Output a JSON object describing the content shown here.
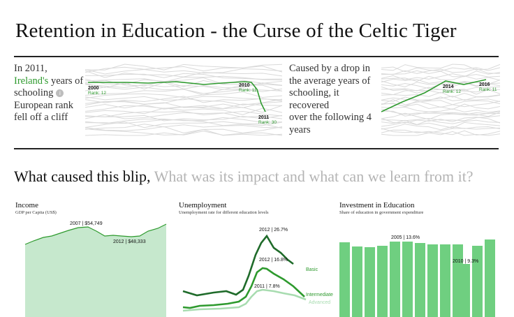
{
  "title": "Retention in Education - the Curse of the Celtic Tiger",
  "intro_left": {
    "line1": "In 2011,",
    "highlight": "Ireland's",
    "line2_rest": " years of",
    "line3": "schooling",
    "line4": "European rank",
    "line5": "fell off a cliff",
    "info_glyph": "i"
  },
  "intro_right": {
    "line1": "Caused by a drop in",
    "line2": "the average years of",
    "line3": "schooling, it recovered",
    "line4": "over the following 4",
    "line5": "years"
  },
  "rank_chart_left": {
    "points": [
      {
        "year": "2000",
        "label": "Rank: 12"
      },
      {
        "year": "2010",
        "label": "Rank: 11"
      },
      {
        "year": "2011",
        "label": "Rank: 30"
      }
    ]
  },
  "rank_chart_right": {
    "points": [
      {
        "year": "2014",
        "label": "Rank: 12"
      },
      {
        "year": "2016",
        "label": "Rank: 11"
      }
    ]
  },
  "section": {
    "question_active": "What caused this blip,",
    "question_muted": "What was its impact and what can we learn from it?"
  },
  "colors": {
    "accent": "#2e9a2e",
    "dark_green": "#1f6b2a",
    "light_green": "#a8dcb0",
    "area_fill": "#c6e8cd",
    "bar_fill": "#6fcf80",
    "muted": "#b4b4b4",
    "spaghetti": "#d9d9d9"
  },
  "chart_data": [
    {
      "type": "area",
      "title": "Income",
      "subtitle": "GDP per Capita (US$)",
      "annotations": [
        "2007 | $54,749",
        "2012 | $48,333"
      ]
    },
    {
      "type": "line",
      "title": "Unemployment",
      "subtitle": "Unemployment rate for different education levels",
      "series": [
        {
          "name": "Basic",
          "annotation": "2012 | 26.7%"
        },
        {
          "name": "Intermediate",
          "annotation": "2012 | 16.8%"
        },
        {
          "name": "Advanced",
          "annotation": "2011 | 7.8%"
        }
      ]
    },
    {
      "type": "bar",
      "title": "Investment in Education",
      "subtitle": "Share of education in government expenditure",
      "annotations": [
        "2005 | 13.6%",
        "2010 | 9.3%"
      ]
    }
  ]
}
